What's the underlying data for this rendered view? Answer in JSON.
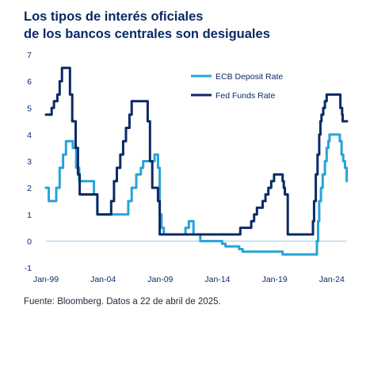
{
  "title_line1": "Los tipos de interés oficiales",
  "title_line2": "de los bancos centrales son desiguales",
  "source": "Fuente: Bloomberg. Datos a 22 de abril de 2025.",
  "chart_data": {
    "type": "line",
    "title": "Los tipos de interés oficiales de los bancos centrales son desiguales",
    "xlabel": "",
    "ylabel": "",
    "xlim": [
      1999.0,
      2025.33
    ],
    "ylim": [
      -1,
      7
    ],
    "yticks": [
      -1,
      0,
      1,
      2,
      3,
      4,
      5,
      6,
      7
    ],
    "xticks": [
      {
        "label": "Jan-99",
        "x": 1999.0
      },
      {
        "label": "Jan-04",
        "x": 2004.0
      },
      {
        "label": "Jan-09",
        "x": 2009.0
      },
      {
        "label": "Jan-14",
        "x": 2014.0
      },
      {
        "label": "Jan-19",
        "x": 2019.0
      },
      {
        "label": "Jan-24",
        "x": 2024.0
      }
    ],
    "grid": false,
    "legend_position": "top-right",
    "series": [
      {
        "name": "ECB Deposit Rate",
        "color": "#27a3d8",
        "points": [
          [
            1999.0,
            2.0
          ],
          [
            1999.25,
            1.5
          ],
          [
            1999.9,
            2.0
          ],
          [
            2000.2,
            2.75
          ],
          [
            2000.5,
            3.25
          ],
          [
            2000.75,
            3.75
          ],
          [
            2001.35,
            3.5
          ],
          [
            2001.65,
            2.75
          ],
          [
            2001.9,
            2.25
          ],
          [
            2002.9,
            2.25
          ],
          [
            2003.2,
            1.75
          ],
          [
            2003.5,
            1.0
          ],
          [
            2005.9,
            1.0
          ],
          [
            2006.2,
            1.5
          ],
          [
            2006.5,
            2.0
          ],
          [
            2006.9,
            2.5
          ],
          [
            2007.3,
            2.75
          ],
          [
            2007.5,
            3.0
          ],
          [
            2008.5,
            3.25
          ],
          [
            2008.8,
            2.75
          ],
          [
            2008.95,
            1.0
          ],
          [
            2009.1,
            0.5
          ],
          [
            2009.3,
            0.25
          ],
          [
            2011.2,
            0.5
          ],
          [
            2011.5,
            0.75
          ],
          [
            2011.9,
            0.25
          ],
          [
            2012.5,
            0.0
          ],
          [
            2014.4,
            -0.1
          ],
          [
            2014.7,
            -0.2
          ],
          [
            2015.9,
            -0.3
          ],
          [
            2016.2,
            -0.4
          ],
          [
            2019.7,
            -0.5
          ],
          [
            2022.55,
            -0.5
          ],
          [
            2022.7,
            0.0
          ],
          [
            2022.8,
            0.75
          ],
          [
            2022.9,
            1.5
          ],
          [
            2023.05,
            2.0
          ],
          [
            2023.2,
            2.5
          ],
          [
            2023.4,
            3.0
          ],
          [
            2023.55,
            3.5
          ],
          [
            2023.7,
            3.75
          ],
          [
            2023.8,
            4.0
          ],
          [
            2024.5,
            4.0
          ],
          [
            2024.7,
            3.75
          ],
          [
            2024.85,
            3.25
          ],
          [
            2025.0,
            3.0
          ],
          [
            2025.15,
            2.75
          ],
          [
            2025.3,
            2.25
          ]
        ]
      },
      {
        "name": "Fed Funds Rate",
        "color": "#0a2a66",
        "points": [
          [
            1999.0,
            4.75
          ],
          [
            1999.5,
            5.0
          ],
          [
            1999.7,
            5.25
          ],
          [
            2000.0,
            5.5
          ],
          [
            2000.2,
            6.0
          ],
          [
            2000.4,
            6.5
          ],
          [
            2001.0,
            6.5
          ],
          [
            2001.1,
            5.5
          ],
          [
            2001.3,
            4.5
          ],
          [
            2001.6,
            3.5
          ],
          [
            2001.8,
            2.5
          ],
          [
            2001.95,
            1.75
          ],
          [
            2002.9,
            1.75
          ],
          [
            2003.5,
            1.0
          ],
          [
            2004.5,
            1.0
          ],
          [
            2004.7,
            1.5
          ],
          [
            2004.95,
            2.25
          ],
          [
            2005.2,
            2.75
          ],
          [
            2005.5,
            3.25
          ],
          [
            2005.75,
            3.75
          ],
          [
            2006.0,
            4.25
          ],
          [
            2006.3,
            4.75
          ],
          [
            2006.5,
            5.25
          ],
          [
            2007.65,
            5.25
          ],
          [
            2007.9,
            4.5
          ],
          [
            2008.1,
            3.0
          ],
          [
            2008.3,
            2.0
          ],
          [
            2008.8,
            1.5
          ],
          [
            2008.95,
            0.25
          ],
          [
            2015.9,
            0.25
          ],
          [
            2016.0,
            0.5
          ],
          [
            2016.95,
            0.75
          ],
          [
            2017.2,
            1.0
          ],
          [
            2017.45,
            1.25
          ],
          [
            2017.95,
            1.5
          ],
          [
            2018.2,
            1.75
          ],
          [
            2018.45,
            2.0
          ],
          [
            2018.7,
            2.25
          ],
          [
            2018.95,
            2.5
          ],
          [
            2019.55,
            2.5
          ],
          [
            2019.7,
            2.25
          ],
          [
            2019.8,
            2.0
          ],
          [
            2019.9,
            1.75
          ],
          [
            2020.15,
            0.25
          ],
          [
            2022.2,
            0.25
          ],
          [
            2022.35,
            0.75
          ],
          [
            2022.45,
            1.5
          ],
          [
            2022.6,
            2.5
          ],
          [
            2022.75,
            3.25
          ],
          [
            2022.9,
            4.0
          ],
          [
            2023.0,
            4.5
          ],
          [
            2023.1,
            4.75
          ],
          [
            2023.25,
            5.0
          ],
          [
            2023.4,
            5.25
          ],
          [
            2023.55,
            5.5
          ],
          [
            2024.7,
            5.5
          ],
          [
            2024.75,
            5.0
          ],
          [
            2024.9,
            4.75
          ],
          [
            2024.95,
            4.5
          ],
          [
            2025.33,
            4.5
          ]
        ]
      }
    ]
  }
}
